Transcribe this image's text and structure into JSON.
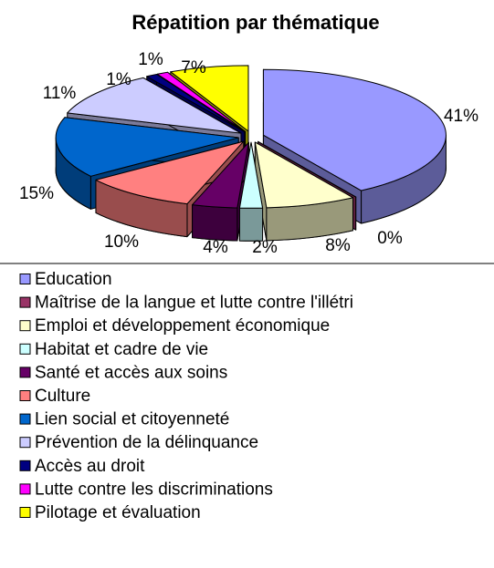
{
  "chart_data": {
    "type": "pie",
    "title": "Répatition par thématique",
    "categories": [
      "Education",
      "Maîtrise de la langue et lutte contre l'illétri",
      "Emploi et développement économique",
      "Habitat et cadre de vie",
      "Santé et accès aux soins",
      "Culture",
      "Lien social et citoyenneté",
      "Prévention de la délinquance",
      "Accès au droit",
      "Lutte contre les discriminations",
      "Pilotage et évaluation"
    ],
    "values": [
      41,
      0,
      8,
      2,
      4,
      10,
      15,
      11,
      1,
      1,
      7
    ],
    "value_labels": [
      "41%",
      "0%",
      "8%",
      "2%",
      "4%",
      "10%",
      "15%",
      "11%",
      "1%",
      "1%",
      "7%"
    ],
    "colors": [
      "#9999ff",
      "#993366",
      "#ffffcc",
      "#ccffff",
      "#660066",
      "#ff8080",
      "#0066cc",
      "#ccccff",
      "#000080",
      "#ff00ff",
      "#ffff00"
    ],
    "legend": "bottom"
  }
}
